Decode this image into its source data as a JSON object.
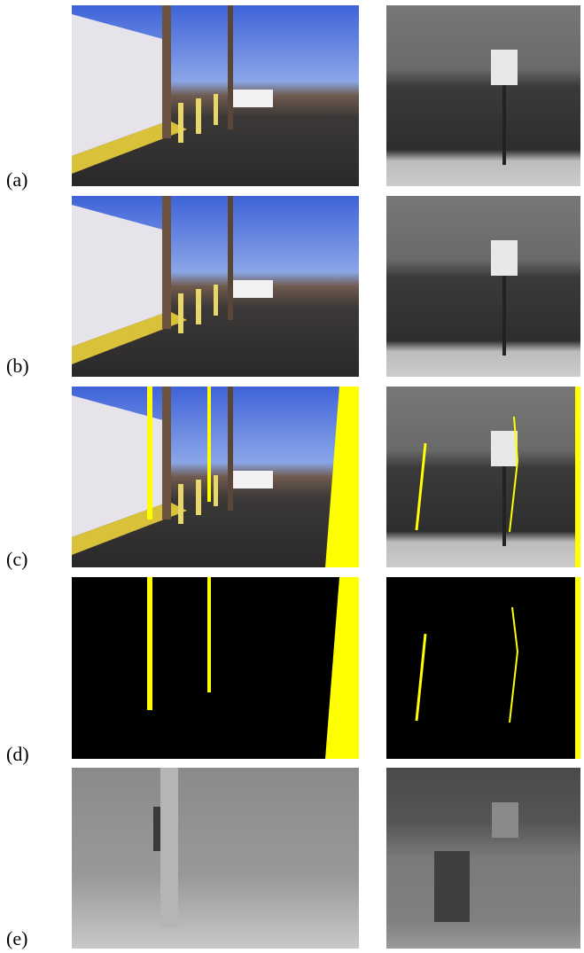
{
  "figure": {
    "labels": [
      "(a)",
      "(b)",
      "(c)",
      "(d)",
      "(e)"
    ]
  }
}
